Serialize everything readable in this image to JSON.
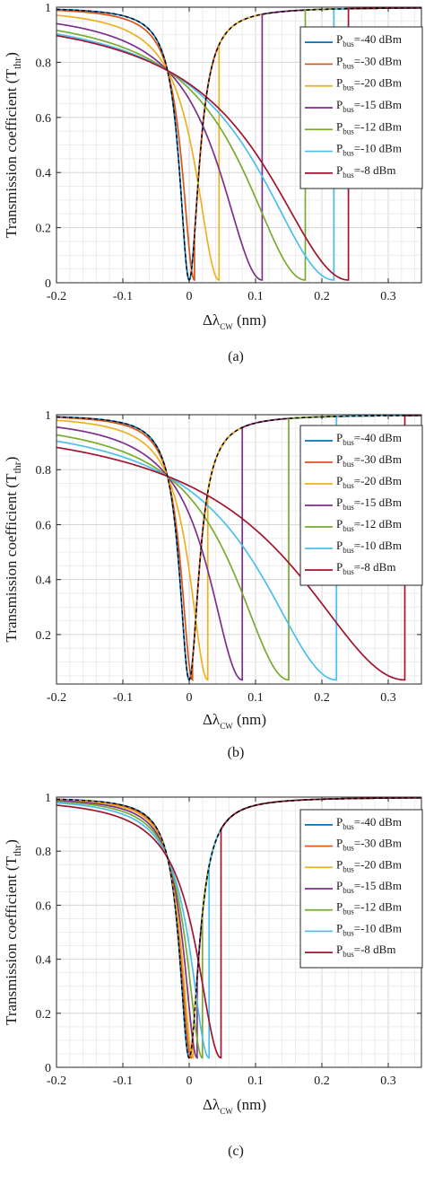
{
  "chart_data": [
    {
      "type": "line",
      "caption": "(a)",
      "xlabel": {
        "prefix": "Δλ",
        "sub": "CW",
        "unit": " (nm)"
      },
      "ylabel": {
        "prefix": "Transmission coefficient (T",
        "sub": "thr",
        "suffix": ")"
      },
      "xlim": [
        -0.2,
        0.35
      ],
      "ylim": [
        0,
        1
      ],
      "xticks": [
        -0.2,
        -0.1,
        0,
        0.1,
        0.2,
        0.3
      ],
      "xtick_labels": [
        "-0.2",
        "-0.1",
        "0",
        "0.1",
        "0.2",
        "0.3"
      ],
      "yticks": [
        0,
        0.2,
        0.4,
        0.6,
        0.8,
        1
      ],
      "ytick_labels": [
        "0",
        "0.2",
        "0.4",
        "0.6",
        "0.8",
        "1"
      ],
      "grid": true,
      "legend_position": "top-right",
      "reference": {
        "dashed": true,
        "dip_x": 0,
        "min": 0.01
      },
      "series": [
        {
          "label_prefix": "P",
          "label_sub": "bus",
          "label_suffix": "=-40 dBm",
          "color": "#0072BD",
          "dip_x": 0.0,
          "min": 0.01
        },
        {
          "label_prefix": "P",
          "label_sub": "bus",
          "label_suffix": "=-30 dBm",
          "color": "#D95319",
          "dip_x": 0.008,
          "min": 0.01
        },
        {
          "label_prefix": "P",
          "label_sub": "bus",
          "label_suffix": "=-20 dBm",
          "color": "#EDB120",
          "dip_x": 0.045,
          "min": 0.01
        },
        {
          "label_prefix": "P",
          "label_sub": "bus",
          "label_suffix": "=-15 dBm",
          "color": "#7E2F8E",
          "dip_x": 0.11,
          "min": 0.01
        },
        {
          "label_prefix": "P",
          "label_sub": "bus",
          "label_suffix": "=-12 dBm",
          "color": "#77AC30",
          "dip_x": 0.175,
          "min": 0.01
        },
        {
          "label_prefix": "P",
          "label_sub": "bus",
          "label_suffix": "=-10 dBm",
          "color": "#4DBEEE",
          "dip_x": 0.218,
          "min": 0.01
        },
        {
          "label_prefix": "P",
          "label_sub": "bus",
          "label_suffix": "=-8 dBm",
          "color": "#A2142F",
          "dip_x": 0.24,
          "min": 0.01
        }
      ]
    },
    {
      "type": "line",
      "caption": "(b)",
      "xlabel": {
        "prefix": "Δλ",
        "sub": "CW",
        "unit": " (nm)"
      },
      "ylabel": {
        "prefix": "Transmission coefficient (T",
        "sub": "thr",
        "suffix": ")"
      },
      "xlim": [
        -0.2,
        0.35
      ],
      "ylim": [
        0.02,
        1
      ],
      "xticks": [
        -0.2,
        -0.1,
        0,
        0.1,
        0.2,
        0.3
      ],
      "xtick_labels": [
        "-0.2",
        "-0.1",
        "0",
        "0.1",
        "0.2",
        "0.3"
      ],
      "yticks": [
        0.2,
        0.4,
        0.6,
        0.8,
        1
      ],
      "ytick_labels": [
        "0.2",
        "0.4",
        "0.6",
        "0.8",
        "1"
      ],
      "grid": true,
      "legend_position": "top-right",
      "reference": {
        "dashed": true,
        "dip_x": 0,
        "min": 0.035
      },
      "series": [
        {
          "label_prefix": "P",
          "label_sub": "bus",
          "label_suffix": "=-40 dBm",
          "color": "#0072BD",
          "dip_x": 0.0,
          "min": 0.035
        },
        {
          "label_prefix": "P",
          "label_sub": "bus",
          "label_suffix": "=-30 dBm",
          "color": "#D95319",
          "dip_x": 0.005,
          "min": 0.035
        },
        {
          "label_prefix": "P",
          "label_sub": "bus",
          "label_suffix": "=-20 dBm",
          "color": "#EDB120",
          "dip_x": 0.028,
          "min": 0.035
        },
        {
          "label_prefix": "P",
          "label_sub": "bus",
          "label_suffix": "=-15 dBm",
          "color": "#7E2F8E",
          "dip_x": 0.08,
          "min": 0.035
        },
        {
          "label_prefix": "P",
          "label_sub": "bus",
          "label_suffix": "=-12 dBm",
          "color": "#77AC30",
          "dip_x": 0.15,
          "min": 0.035
        },
        {
          "label_prefix": "P",
          "label_sub": "bus",
          "label_suffix": "=-10 dBm",
          "color": "#4DBEEE",
          "dip_x": 0.222,
          "min": 0.035
        },
        {
          "label_prefix": "P",
          "label_sub": "bus",
          "label_suffix": "=-8 dBm",
          "color": "#A2142F",
          "dip_x": 0.325,
          "min": 0.035
        }
      ]
    },
    {
      "type": "line",
      "caption": "(c)",
      "xlabel": {
        "prefix": "Δλ",
        "sub": "CW",
        "unit": " (nm)"
      },
      "ylabel": {
        "prefix": "Transmission coefficient (T",
        "sub": "thr",
        "suffix": ")"
      },
      "xlim": [
        -0.2,
        0.35
      ],
      "ylim": [
        0,
        1
      ],
      "xticks": [
        -0.2,
        -0.1,
        0,
        0.1,
        0.2,
        0.3
      ],
      "xtick_labels": [
        "-0.2",
        "-0.1",
        "0",
        "0.1",
        "0.2",
        "0.3"
      ],
      "yticks": [
        0,
        0.2,
        0.4,
        0.6,
        0.8,
        1
      ],
      "ytick_labels": [
        "0",
        "0.2",
        "0.4",
        "0.6",
        "0.8",
        "1"
      ],
      "grid": true,
      "legend_position": "top-right",
      "reference": {
        "dashed": true,
        "dip_x": 0,
        "min": 0.035
      },
      "series": [
        {
          "label_prefix": "P",
          "label_sub": "bus",
          "label_suffix": "=-40 dBm",
          "color": "#0072BD",
          "dip_x": 0.0,
          "min": 0.035
        },
        {
          "label_prefix": "P",
          "label_sub": "bus",
          "label_suffix": "=-30 dBm",
          "color": "#D95319",
          "dip_x": 0.003,
          "min": 0.035
        },
        {
          "label_prefix": "P",
          "label_sub": "bus",
          "label_suffix": "=-20 dBm",
          "color": "#EDB120",
          "dip_x": 0.006,
          "min": 0.035
        },
        {
          "label_prefix": "P",
          "label_sub": "bus",
          "label_suffix": "=-15 dBm",
          "color": "#7E2F8E",
          "dip_x": 0.012,
          "min": 0.035
        },
        {
          "label_prefix": "P",
          "label_sub": "bus",
          "label_suffix": "=-12 dBm",
          "color": "#77AC30",
          "dip_x": 0.02,
          "min": 0.035
        },
        {
          "label_prefix": "P",
          "label_sub": "bus",
          "label_suffix": "=-10 dBm",
          "color": "#4DBEEE",
          "dip_x": 0.03,
          "min": 0.035
        },
        {
          "label_prefix": "P",
          "label_sub": "bus",
          "label_suffix": "=-8 dBm",
          "color": "#A2142F",
          "dip_x": 0.048,
          "min": 0.035
        }
      ]
    }
  ]
}
